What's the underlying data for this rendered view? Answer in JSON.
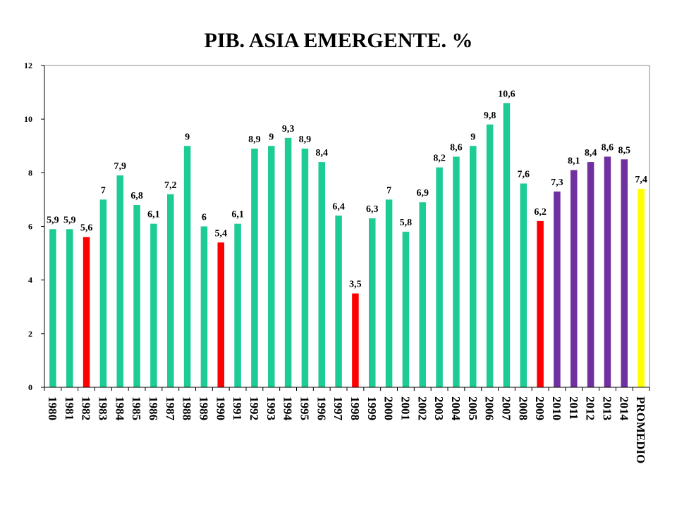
{
  "chart_data": {
    "type": "bar",
    "title": "PIB. ASIA EMERGENTE. %",
    "xlabel": "",
    "ylabel": "",
    "ylim": [
      0,
      12
    ],
    "yticks": [
      0,
      2,
      4,
      6,
      8,
      10,
      12
    ],
    "grid": false,
    "legend": "none",
    "categories": [
      "1980",
      "1981",
      "1982",
      "1983",
      "1984",
      "1985",
      "1986",
      "1987",
      "1988",
      "1989",
      "1990",
      "1991",
      "1992",
      "1993",
      "1994",
      "1995",
      "1996",
      "1997",
      "1998",
      "1999",
      "2000",
      "2001",
      "2002",
      "2003",
      "2004",
      "2005",
      "2006",
      "2007",
      "2008",
      "2009",
      "2010",
      "2011",
      "2012",
      "2013",
      "2014",
      "PROMEDIO"
    ],
    "values": [
      5.9,
      5.9,
      5.6,
      7,
      7.9,
      6.8,
      6.1,
      7.2,
      9,
      6,
      5.4,
      6.1,
      8.9,
      9,
      9.3,
      8.9,
      8.4,
      6.4,
      3.5,
      6.3,
      7,
      5.8,
      6.9,
      8.2,
      8.6,
      9,
      9.8,
      10.6,
      7.6,
      6.2,
      7.3,
      8.1,
      8.4,
      8.6,
      8.5,
      7.4
    ],
    "data_labels": [
      "5,9",
      "5,9",
      "5,6",
      "7",
      "7,9",
      "6,8",
      "6,1",
      "7,2",
      "9",
      "6",
      "5,4",
      "6,1",
      "8,9",
      "9",
      "9,3",
      "8,9",
      "8,4",
      "6,4",
      "3,5",
      "6,3",
      "7",
      "5,8",
      "6,9",
      "8,2",
      "8,6",
      "9",
      "9,8",
      "10,6",
      "7,6",
      "6,2",
      "7,3",
      "8,1",
      "8,4",
      "8,6",
      "8,5",
      "7,4"
    ],
    "bar_colors": [
      "#1dcc95",
      "#1dcc95",
      "#ff0000",
      "#1dcc95",
      "#1dcc95",
      "#1dcc95",
      "#1dcc95",
      "#1dcc95",
      "#1dcc95",
      "#1dcc95",
      "#ff0000",
      "#1dcc95",
      "#1dcc95",
      "#1dcc95",
      "#1dcc95",
      "#1dcc95",
      "#1dcc95",
      "#1dcc95",
      "#ff0000",
      "#1dcc95",
      "#1dcc95",
      "#1dcc95",
      "#1dcc95",
      "#1dcc95",
      "#1dcc95",
      "#1dcc95",
      "#1dcc95",
      "#1dcc95",
      "#1dcc95",
      "#ff0000",
      "#7030a0",
      "#7030a0",
      "#7030a0",
      "#7030a0",
      "#7030a0",
      "#ffff00"
    ]
  }
}
